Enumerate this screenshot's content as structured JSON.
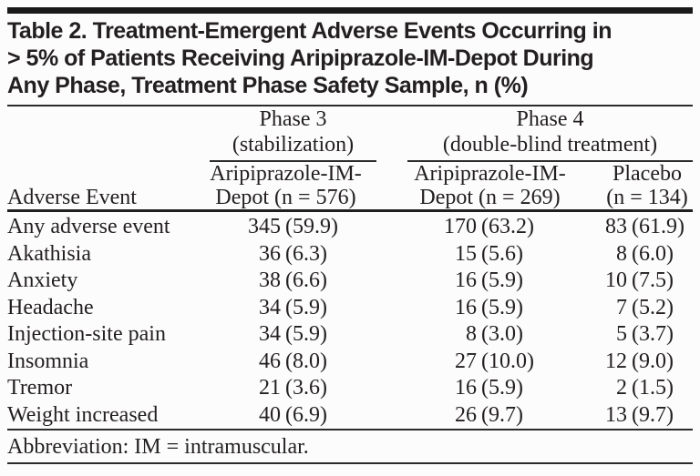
{
  "page": {
    "background": "#fcfcfc",
    "text_color": "#231f20",
    "rule_color": "#2b2b2b"
  },
  "table": {
    "title_lines": [
      "Table 2. Treatment-Emergent Adverse Events Occurring in",
      "> 5% of Patients Receiving Aripiprazole-IM-Depot During",
      "Any Phase, Treatment Phase Safety Sample, n (%)"
    ],
    "row_header": "Adverse Event",
    "groups": [
      {
        "line1": "Phase 3",
        "line2": "(stabilization)"
      },
      {
        "line1": "Phase 4",
        "line2": "(double-blind treatment)"
      }
    ],
    "columns": [
      {
        "line1": "Aripiprazole-IM-",
        "line2": "Depot (n = 576)"
      },
      {
        "line1": "Aripiprazole-IM-",
        "line2": "Depot (n = 269)"
      },
      {
        "line1": "Placebo",
        "line2": "(n = 134)"
      }
    ],
    "rows": [
      {
        "label": "Any adverse event",
        "c1n": "345",
        "c1p": "(59.9)",
        "c2n": "170",
        "c2p": "(63.2)",
        "c3n": "83",
        "c3p": "(61.9)"
      },
      {
        "label": "Akathisia",
        "c1n": "36",
        "c1p": "(6.3)",
        "c2n": "15",
        "c2p": "(5.6)",
        "c3n": "8",
        "c3p": "(6.0)"
      },
      {
        "label": "Anxiety",
        "c1n": "38",
        "c1p": "(6.6)",
        "c2n": "16",
        "c2p": "(5.9)",
        "c3n": "10",
        "c3p": "(7.5)"
      },
      {
        "label": "Headache",
        "c1n": "34",
        "c1p": "(5.9)",
        "c2n": "16",
        "c2p": "(5.9)",
        "c3n": "7",
        "c3p": "(5.2)"
      },
      {
        "label": "Injection-site pain",
        "c1n": "34",
        "c1p": "(5.9)",
        "c2n": "8",
        "c2p": "(3.0)",
        "c3n": "5",
        "c3p": "(3.7)"
      },
      {
        "label": "Insomnia",
        "c1n": "46",
        "c1p": "(8.0)",
        "c2n": "27",
        "c2p": "(10.0)",
        "c3n": "12",
        "c3p": "(9.0)"
      },
      {
        "label": "Tremor",
        "c1n": "21",
        "c1p": "(3.6)",
        "c2n": "16",
        "c2p": "(5.9)",
        "c3n": "2",
        "c3p": "(1.5)"
      },
      {
        "label": "Weight increased",
        "c1n": "40",
        "c1p": "(6.9)",
        "c2n": "26",
        "c2p": "(9.7)",
        "c3n": "13",
        "c3p": "(9.7)"
      }
    ],
    "footnote": "Abbreviation: IM = intramuscular."
  }
}
